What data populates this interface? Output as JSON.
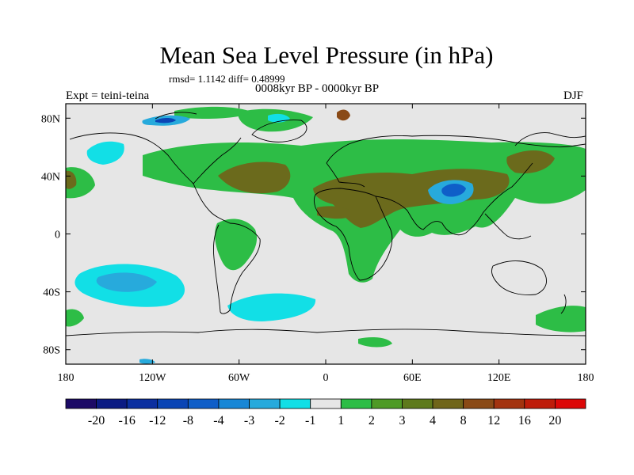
{
  "title": "Mean Sea Level Pressure (in hPa)",
  "stats": "rmsd= 1.1142 diff= 0.48999",
  "subtitle": "0008kyr BP - 0000kyr BP",
  "left_label": "Expt = teini-teina",
  "right_label": "DJF",
  "chart_data": {
    "type": "heatmap",
    "variable": "Mean Sea Level Pressure difference",
    "units": "hPa",
    "season": "DJF",
    "x_axis": {
      "range": [
        -180,
        180
      ],
      "ticks": [
        {
          "value": -180,
          "label": "180"
        },
        {
          "value": -120,
          "label": "120W"
        },
        {
          "value": -60,
          "label": "60W"
        },
        {
          "value": 0,
          "label": "0"
        },
        {
          "value": 60,
          "label": "60E"
        },
        {
          "value": 120,
          "label": "120E"
        },
        {
          "value": 180,
          "label": "180"
        }
      ]
    },
    "y_axis": {
      "range": [
        -90,
        90
      ],
      "ticks": [
        {
          "value": 80,
          "label": "80N"
        },
        {
          "value": 40,
          "label": "40N"
        },
        {
          "value": 0,
          "label": "0"
        },
        {
          "value": -40,
          "label": "40S"
        },
        {
          "value": -80,
          "label": "80S"
        }
      ]
    },
    "colorbar": {
      "colors": [
        "#1c0a66",
        "#0b1b83",
        "#0b2fa0",
        "#0a45b5",
        "#0f5ec8",
        "#1887d6",
        "#27aadc",
        "#12dfe6",
        "#e6e6e6",
        "#2dbd46",
        "#4e9a26",
        "#5e7a1c",
        "#70651a",
        "#8a4a16",
        "#a3330f",
        "#be1c0a",
        "#dc0808"
      ],
      "labels": [
        "-20",
        "-16",
        "-12",
        "-8",
        "-4",
        "-3",
        "-2",
        "-1",
        "1",
        "2",
        "3",
        "4",
        "8",
        "12",
        "16",
        "20"
      ]
    }
  }
}
